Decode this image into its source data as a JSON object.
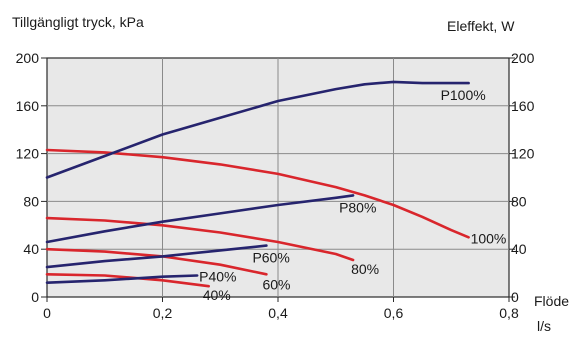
{
  "chart_data": {
    "type": "line",
    "title": "",
    "ylabel_left": "Tillgängligt tryck, kPa",
    "ylabel_right": "Eleffekt, W",
    "xlabel_line1": "Flöde",
    "xlabel_line2": "l/s",
    "xlim": [
      0,
      0.8
    ],
    "ylim_left": [
      0,
      200
    ],
    "ylim_right": [
      0,
      200
    ],
    "x_ticks": [
      "0",
      "0,2",
      "0,4",
      "0,6",
      "0,8"
    ],
    "x_tick_values": [
      0,
      0.2,
      0.4,
      0.6,
      0.8
    ],
    "y_ticks_left": [
      "0",
      "40",
      "80",
      "120",
      "160",
      "200"
    ],
    "y_ticks_right": [
      "0",
      "40",
      "80",
      "120",
      "160",
      "200"
    ],
    "y_tick_values": [
      0,
      40,
      80,
      120,
      160,
      200
    ],
    "grid": true,
    "pressure_color": "#d9262c",
    "power_color": "#26246e",
    "series": [
      {
        "name": "100%",
        "kind": "pressure",
        "axis": "left",
        "x": [
          0,
          0.1,
          0.2,
          0.3,
          0.4,
          0.5,
          0.55,
          0.6,
          0.65,
          0.7,
          0.73
        ],
        "y": [
          123,
          121,
          117,
          111,
          103,
          92,
          85,
          77,
          67,
          56,
          50
        ]
      },
      {
        "name": "80%",
        "kind": "pressure",
        "axis": "left",
        "x": [
          0,
          0.1,
          0.2,
          0.3,
          0.4,
          0.5,
          0.53
        ],
        "y": [
          66,
          64,
          60,
          54,
          46,
          36,
          31
        ]
      },
      {
        "name": "60%",
        "kind": "pressure",
        "axis": "left",
        "x": [
          0,
          0.1,
          0.2,
          0.3,
          0.38
        ],
        "y": [
          40,
          38,
          34,
          27,
          19
        ]
      },
      {
        "name": "40%",
        "kind": "pressure",
        "axis": "left",
        "x": [
          0,
          0.1,
          0.2,
          0.28
        ],
        "y": [
          19,
          18,
          14,
          9
        ]
      },
      {
        "name": "P100%",
        "kind": "power",
        "axis": "right",
        "x": [
          0,
          0.1,
          0.2,
          0.3,
          0.4,
          0.5,
          0.55,
          0.6,
          0.65,
          0.7,
          0.73
        ],
        "y": [
          100,
          118,
          136,
          150,
          164,
          174,
          178,
          180,
          179,
          179,
          179
        ]
      },
      {
        "name": "P80%",
        "kind": "power",
        "axis": "right",
        "x": [
          0,
          0.1,
          0.2,
          0.3,
          0.4,
          0.5,
          0.53
        ],
        "y": [
          46,
          55,
          63,
          70,
          77,
          83,
          85
        ]
      },
      {
        "name": "P60%",
        "kind": "power",
        "axis": "right",
        "x": [
          0,
          0.1,
          0.2,
          0.3,
          0.38
        ],
        "y": [
          25,
          30,
          34,
          39,
          43
        ]
      },
      {
        "name": "P40%",
        "kind": "power",
        "axis": "right",
        "x": [
          0,
          0.1,
          0.2,
          0.26
        ],
        "y": [
          12,
          14,
          17,
          18
        ]
      }
    ]
  }
}
